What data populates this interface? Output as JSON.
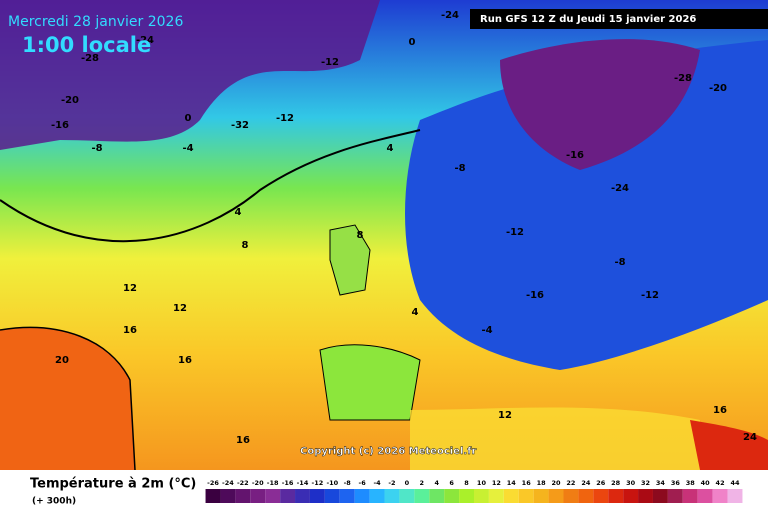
{
  "header": {
    "date": "Mercredi 28 janvier 2026",
    "time": "1:00 locale",
    "run": "Run GFS 12 Z du Jeudi 15 janvier 2026"
  },
  "map": {
    "labels": [
      -28,
      -24,
      -20,
      -16,
      -8,
      -4,
      0,
      4,
      8,
      12,
      16,
      20,
      16,
      -16,
      -24,
      -12,
      -16,
      -12,
      -8,
      -4,
      0,
      -12,
      4,
      8,
      4,
      12,
      16,
      24,
      -28,
      -20,
      -24,
      16,
      -32,
      -12,
      12,
      -8
    ],
    "copyright": "Copyright (c) 2026 Meteociel.fr"
  },
  "legend": {
    "title": "Température à 2m (°C)",
    "lead": "(+ 300h)",
    "ticks": [
      -26,
      -24,
      -22,
      -20,
      -18,
      -16,
      -14,
      -12,
      -10,
      -8,
      -6,
      -4,
      -2,
      0,
      2,
      4,
      6,
      8,
      10,
      12,
      14,
      16,
      18,
      20,
      22,
      24,
      26,
      28,
      30,
      32,
      34,
      36,
      38,
      40,
      42,
      44
    ],
    "colors": [
      "#3a0040",
      "#4e0a5a",
      "#63146e",
      "#781f82",
      "#8a2d96",
      "#5a2aa0",
      "#3a2db4",
      "#1e2fc8",
      "#1848dc",
      "#1e64f0",
      "#1e8cff",
      "#28b4ff",
      "#3cd2f0",
      "#50e6c8",
      "#5af09a",
      "#6ee664",
      "#8ce63c",
      "#aaf02a",
      "#c8f032",
      "#e6f03c",
      "#fadc32",
      "#fac828",
      "#f5b41e",
      "#f59b19",
      "#f07d14",
      "#f0640f",
      "#eb460f",
      "#dc280f",
      "#c8140f",
      "#aa0a14",
      "#8c0a1e",
      "#a01e50",
      "#c83278",
      "#dc50a0",
      "#f082c8",
      "#f0b4e6"
    ]
  }
}
